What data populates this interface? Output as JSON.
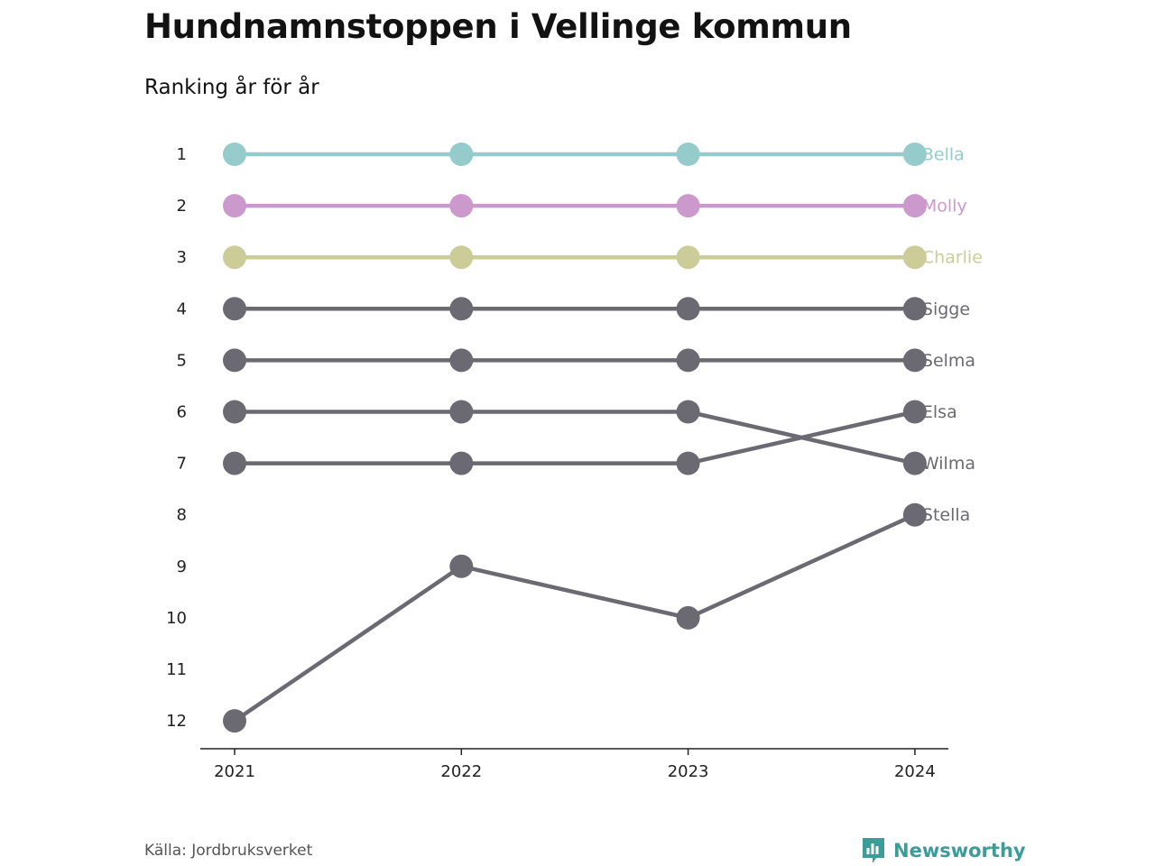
{
  "title": "Hundnamnstoppen i Vellinge kommun",
  "subtitle": "Ranking år för år",
  "source": "Källa: Jordbruksverket",
  "brand": {
    "name": "Newsworthy",
    "icon": "newsworthy-logo-icon",
    "color": "#3d9c97"
  },
  "chart_data": {
    "type": "line",
    "title": "Hundnamnstoppen i Vellinge kommun",
    "subtitle": "Ranking år för år",
    "x": [
      "2021",
      "2022",
      "2023",
      "2024"
    ],
    "y_ticks": [
      1,
      2,
      3,
      4,
      5,
      6,
      7,
      8,
      9,
      10,
      11,
      12
    ],
    "ylim": [
      1,
      12
    ],
    "y_reversed": true,
    "grid": false,
    "legend": "end-labels",
    "series": [
      {
        "name": "Bella",
        "values": [
          1,
          1,
          1,
          1
        ],
        "color": "#95cbca"
      },
      {
        "name": "Molly",
        "values": [
          2,
          2,
          2,
          2
        ],
        "color": "#cc99cc"
      },
      {
        "name": "Charlie",
        "values": [
          3,
          3,
          3,
          3
        ],
        "color": "#cccc99"
      },
      {
        "name": "Sigge",
        "values": [
          4,
          4,
          4,
          4
        ],
        "color": "#6b6a72"
      },
      {
        "name": "Selma",
        "values": [
          5,
          5,
          5,
          5
        ],
        "color": "#6b6a72"
      },
      {
        "name": "Elsa",
        "values": [
          7,
          7,
          7,
          6
        ],
        "color": "#6b6a72"
      },
      {
        "name": "Wilma",
        "values": [
          6,
          6,
          6,
          7
        ],
        "color": "#6b6a72"
      },
      {
        "name": "Stella",
        "values": [
          12,
          9,
          10,
          8
        ],
        "color": "#6b6a72"
      }
    ]
  }
}
